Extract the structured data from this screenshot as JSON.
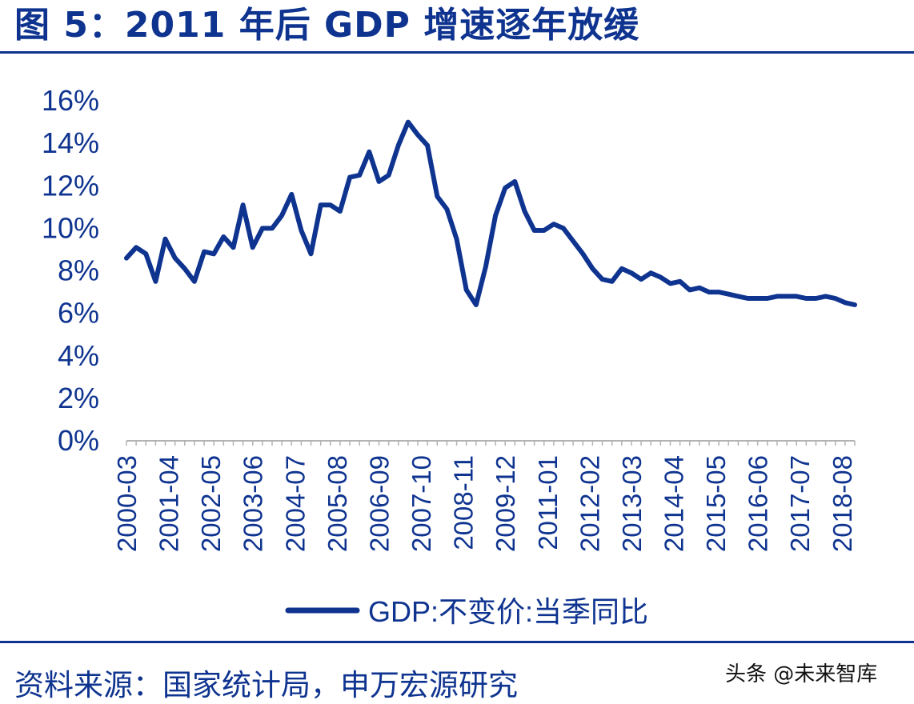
{
  "header": {
    "title": "图 5：2011 年后 GDP 增速逐年放缓"
  },
  "footer": {
    "source": "资料来源：国家统计局，申万宏源研究",
    "watermark": "头条 @未来智库"
  },
  "colors": {
    "primary": "#0f3490",
    "line": "#0f3490",
    "background": "#ffffff"
  },
  "chart_data": {
    "type": "line",
    "title": "",
    "xlabel": "",
    "ylabel": "",
    "ylim": [
      0,
      16
    ],
    "yticks": [
      "0%",
      "2%",
      "4%",
      "6%",
      "8%",
      "10%",
      "12%",
      "14%",
      "16%"
    ],
    "grid": false,
    "legend_position": "bottom",
    "x_tick_labels": [
      "2000-03",
      "2001-04",
      "2002-05",
      "2003-06",
      "2004-07",
      "2005-08",
      "2006-09",
      "2007-10",
      "2008-11",
      "2009-12",
      "2011-01",
      "2012-02",
      "2013-03",
      "2014-04",
      "2015-05",
      "2016-06",
      "2017-07",
      "2018-08"
    ],
    "series": [
      {
        "name": "GDP:不变价:当季同比",
        "x": [
          "2000-03",
          "2000-06",
          "2000-09",
          "2000-12",
          "2001-03",
          "2001-06",
          "2001-09",
          "2001-12",
          "2002-03",
          "2002-06",
          "2002-09",
          "2002-12",
          "2003-03",
          "2003-06",
          "2003-09",
          "2003-12",
          "2004-03",
          "2004-06",
          "2004-09",
          "2004-12",
          "2005-03",
          "2005-06",
          "2005-09",
          "2005-12",
          "2006-03",
          "2006-06",
          "2006-09",
          "2006-12",
          "2007-03",
          "2007-06",
          "2007-09",
          "2007-12",
          "2008-03",
          "2008-06",
          "2008-09",
          "2008-12",
          "2009-03",
          "2009-06",
          "2009-09",
          "2009-12",
          "2010-03",
          "2010-06",
          "2010-09",
          "2010-12",
          "2011-03",
          "2011-06",
          "2011-09",
          "2011-12",
          "2012-03",
          "2012-06",
          "2012-09",
          "2012-12",
          "2013-03",
          "2013-06",
          "2013-09",
          "2013-12",
          "2014-03",
          "2014-06",
          "2014-09",
          "2014-12",
          "2015-03",
          "2015-06",
          "2015-09",
          "2015-12",
          "2016-03",
          "2016-06",
          "2016-09",
          "2016-12",
          "2017-03",
          "2017-06",
          "2017-09",
          "2017-12",
          "2018-03",
          "2018-06",
          "2018-09",
          "2018-12"
        ],
        "values": [
          8.6,
          9.1,
          8.8,
          7.5,
          9.5,
          8.6,
          8.1,
          7.5,
          8.9,
          8.8,
          9.6,
          9.1,
          11.1,
          9.1,
          10.0,
          10.0,
          10.6,
          11.6,
          9.9,
          8.8,
          11.1,
          11.1,
          10.8,
          12.4,
          12.5,
          13.6,
          12.2,
          12.5,
          13.9,
          15.0,
          14.4,
          13.9,
          11.5,
          10.9,
          9.5,
          7.1,
          6.4,
          8.2,
          10.6,
          11.9,
          12.2,
          10.8,
          9.9,
          9.9,
          10.2,
          10.0,
          9.4,
          8.8,
          8.1,
          7.6,
          7.5,
          8.1,
          7.9,
          7.6,
          7.9,
          7.7,
          7.4,
          7.5,
          7.1,
          7.2,
          7.0,
          7.0,
          6.9,
          6.8,
          6.7,
          6.7,
          6.7,
          6.8,
          6.8,
          6.8,
          6.7,
          6.7,
          6.8,
          6.7,
          6.5,
          6.4
        ]
      }
    ]
  }
}
